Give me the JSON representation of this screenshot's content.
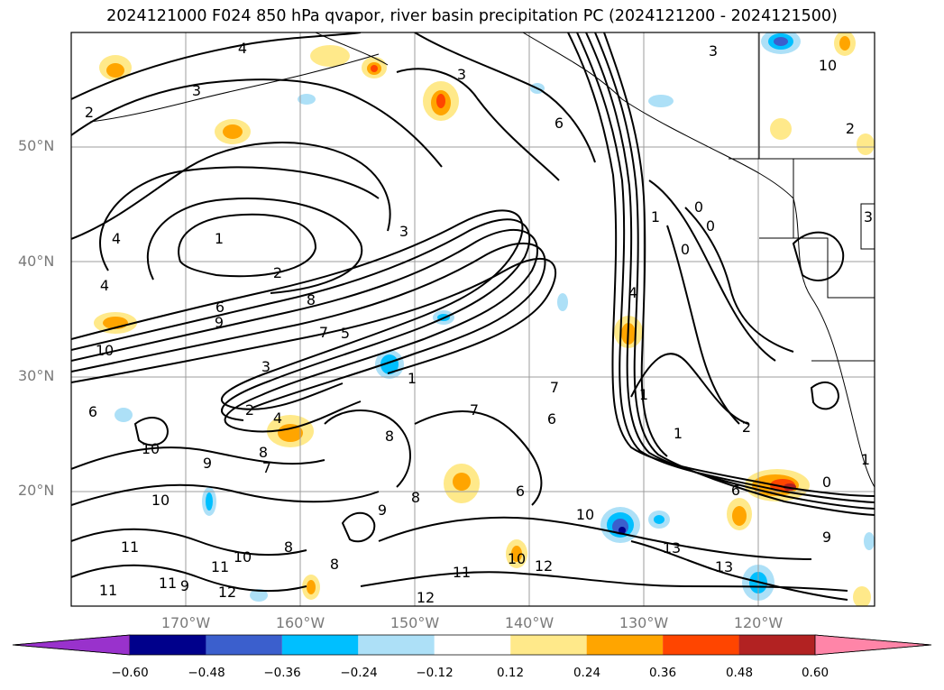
{
  "title": "2024121000 F024 850 hPa qvapor, river basin precipitation PC (2024121200 - 2024121500)",
  "lat_labels": [
    "50°N",
    "40°N",
    "30°N",
    "20°N"
  ],
  "lon_labels": [
    "170°W",
    "160°W",
    "150°W",
    "140°W",
    "130°W",
    "120°W"
  ],
  "contour_labels": {
    "4": "4",
    "3": "3",
    "2": "2",
    "1": "1",
    "0": "0",
    "6": "6",
    "7": "7",
    "8": "8",
    "9": "9",
    "10": "10",
    "11": "11",
    "12": "12",
    "13": "13",
    "5": "5"
  },
  "colorbar": {
    "colors": [
      "#9932cc",
      "#00008b",
      "#3b5fcd",
      "#00bfff",
      "#ade0f7",
      "#ffffff",
      "#ffe98a",
      "#ffa500",
      "#ff4500",
      "#b22222",
      "#ff85a8"
    ],
    "ticks": [
      "−0.60",
      "−0.48",
      "−0.36",
      "−0.24",
      "−0.12",
      "0.12",
      "0.24",
      "0.36",
      "0.48",
      "0.60"
    ]
  }
}
